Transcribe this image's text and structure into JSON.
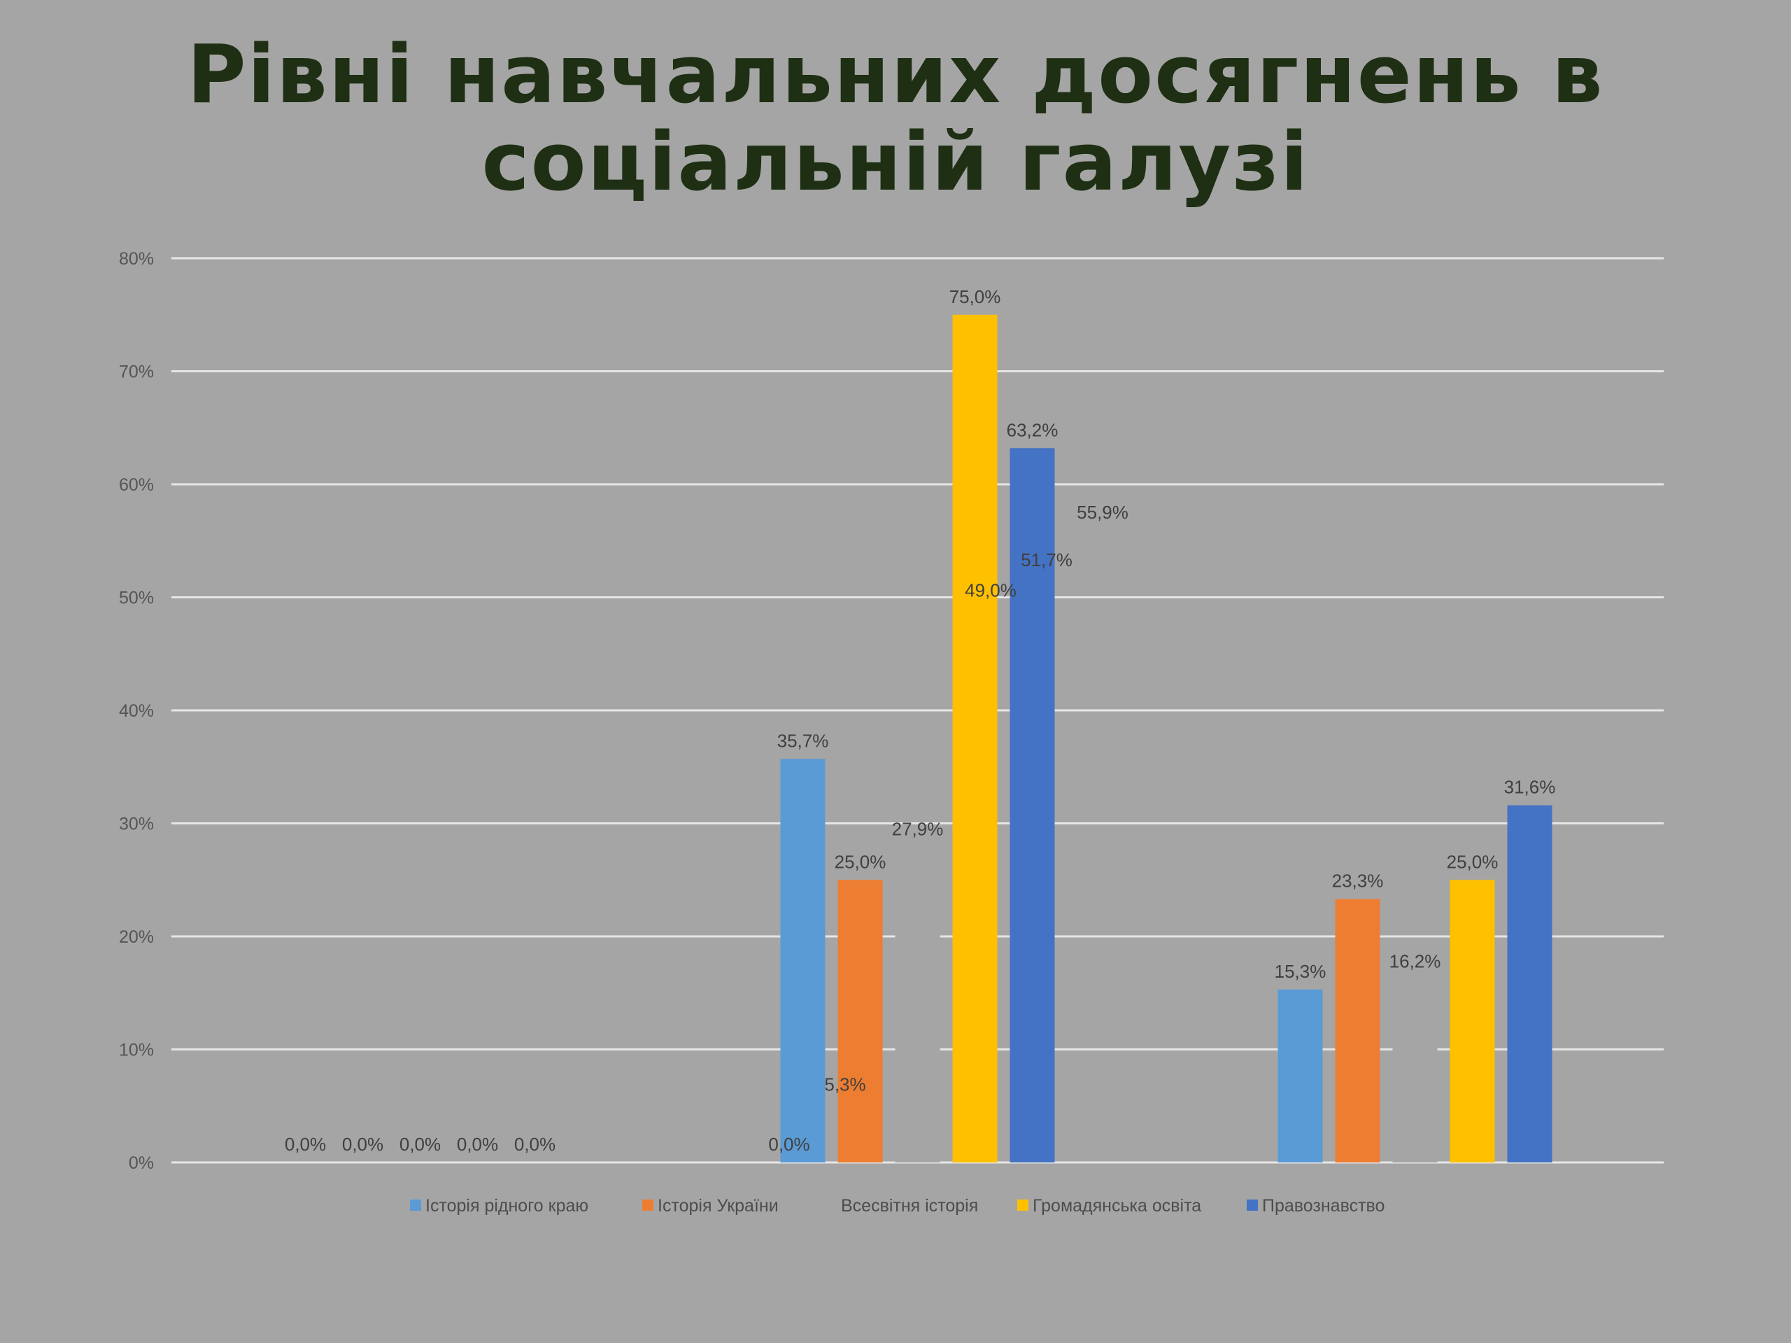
{
  "title_lines": [
    "Рівні навчальних досягнень в",
    "соціальній галузі"
  ],
  "chart_data": {
    "type": "bar",
    "title": "Рівні навчальних досягнень в соціальній галузі",
    "categories": [
      "",
      "",
      ""
    ],
    "ylim": [
      0,
      80
    ],
    "yticks": [
      "0%",
      "10%",
      "20%",
      "30%",
      "40%",
      "50%",
      "60%",
      "70%",
      "80%"
    ],
    "grid": true,
    "legend_position": "bottom",
    "series": [
      {
        "name": "Історія рідного краю",
        "color": "#5b9bd5",
        "values": [
          0,
          35.7,
          15.3
        ],
        "labels": [
          "0,0%",
          "35,7%",
          "15,3%"
        ]
      },
      {
        "name": "Історія України",
        "color": "#ed7d31",
        "values": [
          0,
          25.0,
          23.3
        ],
        "labels": [
          "0,0%",
          "25,0%",
          "23,3%"
        ]
      },
      {
        "name": "Всесвітня історія",
        "color": "#a5a5a5",
        "values": [
          0,
          27.9,
          16.2
        ],
        "labels": [
          "0,0%",
          "27,9%",
          "16,2%"
        ]
      },
      {
        "name": "Громадянська освіта",
        "color": "#ffc000",
        "values": [
          0,
          75.0,
          25.0
        ],
        "labels": [
          "0,0%",
          "75,0%",
          "25,0%"
        ]
      },
      {
        "name": "Правознавство",
        "color": "#4472c4",
        "values": [
          0,
          63.2,
          31.6
        ],
        "labels": [
          "0,0%",
          "63,2%",
          "31,6%"
        ]
      }
    ],
    "group_data_labels": [
      [],
      [
        "0,0%",
        "5,3%"
      ],
      [
        "49,0%",
        "51,7%",
        "55,9%"
      ]
    ]
  }
}
